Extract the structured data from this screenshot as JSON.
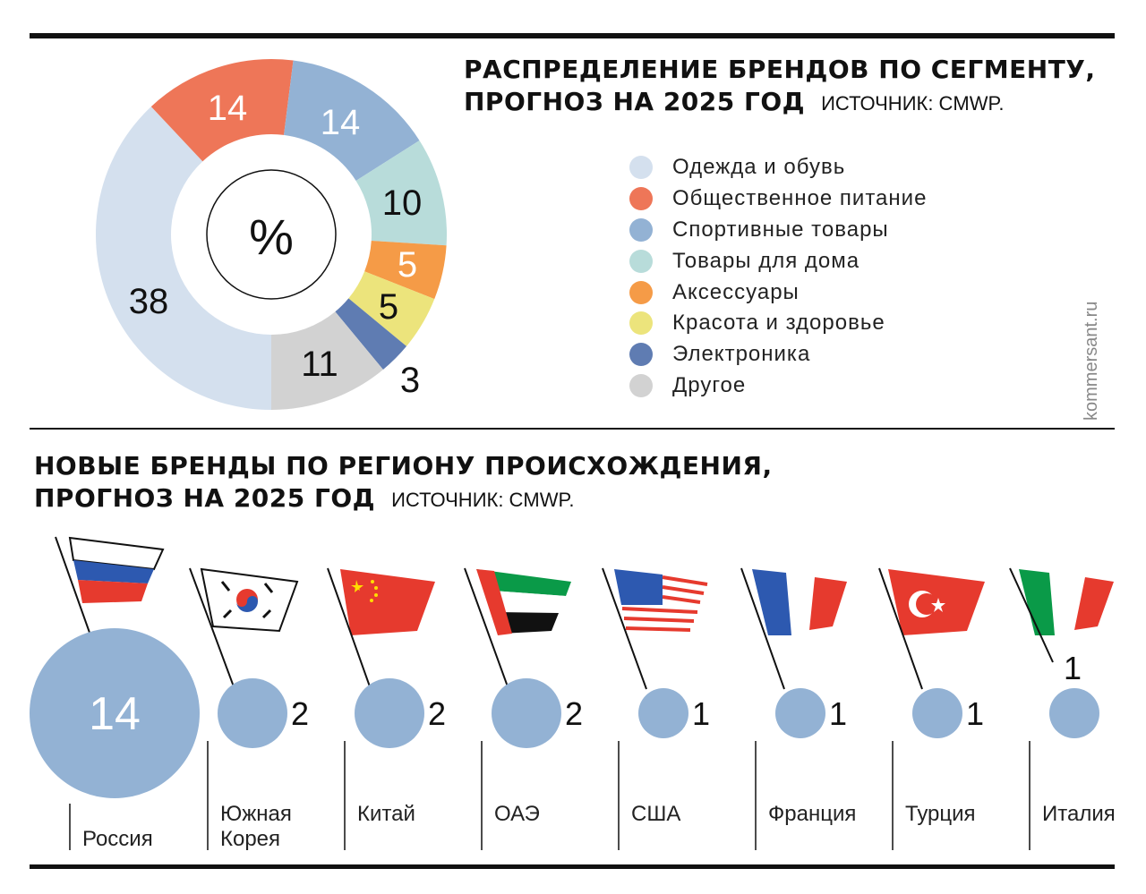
{
  "top_title": {
    "line1": "РАСПРЕДЕЛЕНИЕ БРЕНДОВ ПО СЕГМЕНТУ,",
    "line2": "ПРОГНОЗ НА 2025 ГОД",
    "source": "ИСТОЧНИК: CMWP."
  },
  "bottom_title": {
    "line1": "НОВЫЕ БРЕНДЫ ПО РЕГИОНУ ПРОИСХОЖДЕНИЯ,",
    "line2": "ПРОГНОЗ НА 2025 ГОД",
    "source": "ИСТОЧНИК: CMWP."
  },
  "watermark": "kommersant.ru",
  "chart_data": [
    {
      "type": "pie",
      "title": "Распределение брендов по сегменту, прогноз на 2025 год",
      "unit_label": "%",
      "categories": [
        "Одежда и обувь",
        "Общественное питание",
        "Спортивные товары",
        "Товары для дома",
        "Аксессуары",
        "Красота и здоровье",
        "Электроника",
        "Другое"
      ],
      "values": [
        38,
        14,
        14,
        10,
        5,
        5,
        3,
        11
      ],
      "colors": [
        "#d4e0ee",
        "#ee7658",
        "#93b2d4",
        "#b8dcda",
        "#f59b47",
        "#ece47c",
        "#5f7cb2",
        "#d2d2d2"
      ],
      "legend_placement": "right"
    },
    {
      "type": "bubble",
      "title": "Новые бренды по региону происхождения, прогноз на 2025 год",
      "categories": [
        "Россия",
        "Южная Корея",
        "Китай",
        "ОАЭ",
        "США",
        "Франция",
        "Турция",
        "Италия"
      ],
      "values": [
        14,
        2,
        2,
        2,
        1,
        1,
        1,
        1
      ],
      "color": "#93b2d4"
    }
  ]
}
